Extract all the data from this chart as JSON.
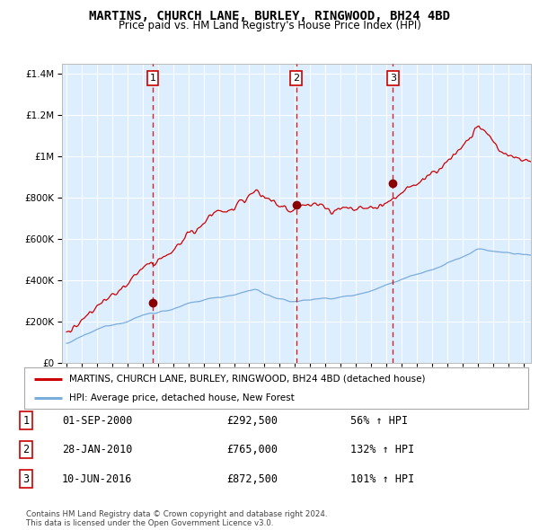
{
  "title": "MARTINS, CHURCH LANE, BURLEY, RINGWOOD, BH24 4BD",
  "subtitle": "Price paid vs. HM Land Registry's House Price Index (HPI)",
  "ylim": [
    0,
    1450000
  ],
  "xlim_start": 1994.7,
  "xlim_end": 2025.5,
  "background_color": "#ddeeff",
  "grid_color": "#ffffff",
  "sale_dates": [
    2000.667,
    2010.074,
    2016.44
  ],
  "sale_prices": [
    292500,
    765000,
    872500
  ],
  "sale_labels": [
    "1",
    "2",
    "3"
  ],
  "legend_label_red": "MARTINS, CHURCH LANE, BURLEY, RINGWOOD, BH24 4BD (detached house)",
  "legend_label_blue": "HPI: Average price, detached house, New Forest",
  "table_rows": [
    [
      "1",
      "01-SEP-2000",
      "£292,500",
      "56% ↑ HPI"
    ],
    [
      "2",
      "28-JAN-2010",
      "£765,000",
      "132% ↑ HPI"
    ],
    [
      "3",
      "10-JUN-2016",
      "£872,500",
      "101% ↑ HPI"
    ]
  ],
  "footer1": "Contains HM Land Registry data © Crown copyright and database right 2024.",
  "footer2": "This data is licensed under the Open Government Licence v3.0.",
  "red_line_color": "#cc0000",
  "blue_line_color": "#7aacdc",
  "dot_color": "#880000"
}
